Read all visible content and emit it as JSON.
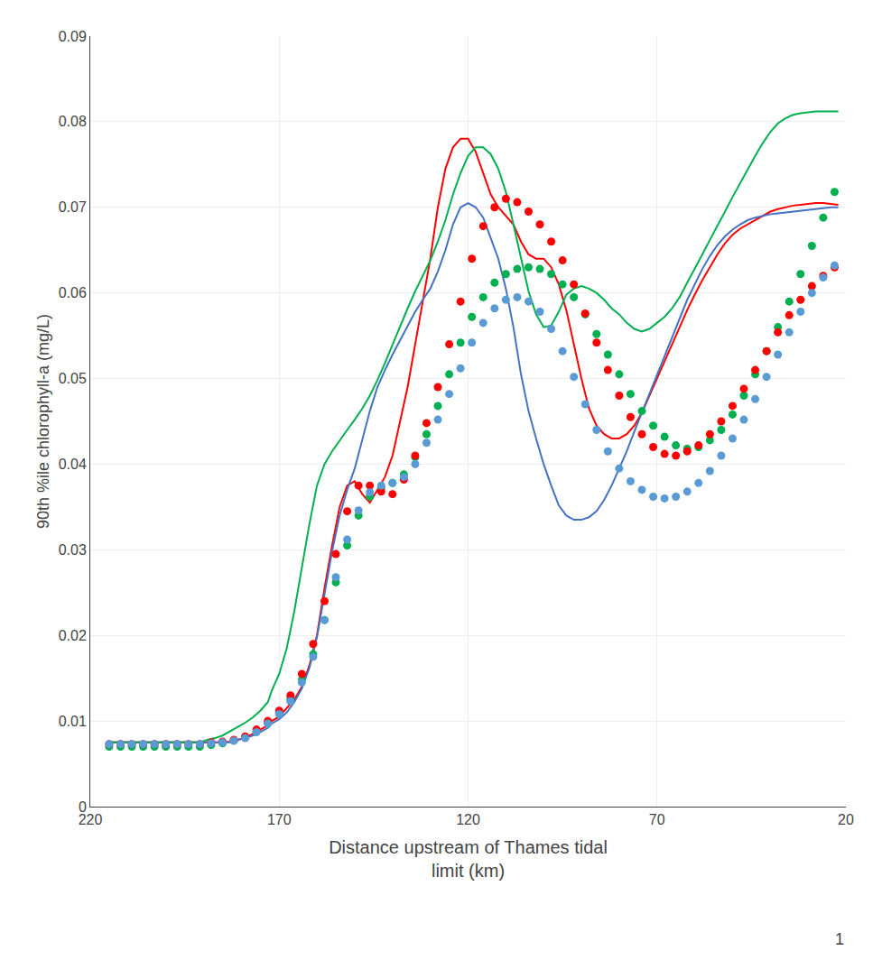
{
  "chart_data": {
    "type": "line",
    "xlabel": "Distance upstream of Thames tidal\nlimit (km)",
    "ylabel": "90th %ile chlorophyll-a (mg/L)",
    "xlim": [
      220,
      20
    ],
    "ylim": [
      0,
      0.09
    ],
    "xticks": [
      220,
      170,
      120,
      70,
      20
    ],
    "yticks": [
      0,
      0.01,
      0.02,
      0.03,
      0.04,
      0.05,
      0.06,
      0.07,
      0.08,
      0.09
    ],
    "grid": true,
    "annotations": [
      "1"
    ],
    "series": [
      {
        "type": "line",
        "color": "#FF0000",
        "x": [
          215,
          213,
          211,
          209,
          207,
          205,
          203,
          201,
          199,
          197,
          195,
          193,
          191,
          189,
          187,
          185,
          183,
          181,
          179,
          177,
          175,
          173,
          172,
          170,
          168,
          166,
          164,
          162,
          160,
          158,
          156,
          154,
          152,
          150,
          148,
          146,
          144,
          142,
          140,
          138,
          136,
          134,
          132,
          130,
          128,
          126,
          124,
          122,
          120,
          118,
          116,
          114,
          112,
          110,
          108,
          106,
          104,
          102,
          100,
          98,
          96,
          94,
          92,
          90,
          88,
          86,
          84,
          82,
          80,
          78,
          76,
          74,
          72,
          70,
          68,
          66,
          64,
          62,
          60,
          58,
          56,
          54,
          52,
          50,
          48,
          46,
          44,
          42,
          40,
          38,
          36,
          34,
          32,
          30,
          28,
          26,
          24,
          22
        ],
        "values": [
          0.0075,
          0.0075,
          0.0075,
          0.0075,
          0.0075,
          0.0075,
          0.0075,
          0.0075,
          0.0075,
          0.0075,
          0.0075,
          0.0075,
          0.0075,
          0.0075,
          0.0075,
          0.0075,
          0.0076,
          0.0078,
          0.008,
          0.0085,
          0.009,
          0.0095,
          0.01,
          0.0105,
          0.0115,
          0.0125,
          0.014,
          0.0165,
          0.02,
          0.0255,
          0.0305,
          0.035,
          0.0375,
          0.038,
          0.0365,
          0.0355,
          0.037,
          0.0385,
          0.041,
          0.045,
          0.049,
          0.054,
          0.059,
          0.064,
          0.07,
          0.0745,
          0.077,
          0.078,
          0.078,
          0.0765,
          0.074,
          0.0715,
          0.07,
          0.069,
          0.068,
          0.066,
          0.0645,
          0.064,
          0.064,
          0.063,
          0.061,
          0.058,
          0.054,
          0.05,
          0.0465,
          0.0445,
          0.0435,
          0.043,
          0.043,
          0.0435,
          0.0445,
          0.046,
          0.048,
          0.05,
          0.052,
          0.054,
          0.056,
          0.058,
          0.0598,
          0.0615,
          0.063,
          0.0645,
          0.0658,
          0.0668,
          0.0675,
          0.068,
          0.0685,
          0.069,
          0.0695,
          0.0698,
          0.07,
          0.0702,
          0.0703,
          0.0704,
          0.0705,
          0.0705,
          0.0704,
          0.0703
        ]
      },
      {
        "type": "line",
        "color": "#4472C4",
        "x": [
          215,
          213,
          211,
          209,
          207,
          205,
          203,
          201,
          199,
          197,
          195,
          193,
          191,
          189,
          187,
          185,
          183,
          181,
          179,
          177,
          175,
          173,
          172,
          170,
          168,
          166,
          164,
          162,
          160,
          158,
          156,
          154,
          152,
          150,
          148,
          146,
          144,
          142,
          140,
          138,
          136,
          134,
          132,
          130,
          128,
          126,
          124,
          122,
          120,
          118,
          116,
          114,
          112,
          110,
          108,
          106,
          104,
          102,
          100,
          98,
          96,
          94,
          92,
          90,
          88,
          86,
          84,
          82,
          80,
          78,
          76,
          74,
          72,
          70,
          68,
          66,
          64,
          62,
          60,
          58,
          56,
          54,
          52,
          50,
          48,
          46,
          44,
          42,
          40,
          38,
          36,
          34,
          32,
          30,
          28,
          26,
          24,
          22
        ],
        "values": [
          0.0075,
          0.0075,
          0.0075,
          0.0075,
          0.0075,
          0.0075,
          0.0075,
          0.0075,
          0.0075,
          0.0075,
          0.0075,
          0.0075,
          0.0075,
          0.0075,
          0.0075,
          0.0075,
          0.0075,
          0.0078,
          0.008,
          0.0083,
          0.0087,
          0.0092,
          0.0097,
          0.0102,
          0.011,
          0.0122,
          0.0138,
          0.0162,
          0.0198,
          0.0248,
          0.0298,
          0.034,
          0.037,
          0.0395,
          0.043,
          0.0462,
          0.049,
          0.051,
          0.0528,
          0.0545,
          0.0562,
          0.0578,
          0.0592,
          0.0605,
          0.0625,
          0.065,
          0.068,
          0.07,
          0.0705,
          0.07,
          0.0688,
          0.0665,
          0.064,
          0.0605,
          0.056,
          0.0505,
          0.0462,
          0.043,
          0.04,
          0.0375,
          0.0352,
          0.034,
          0.0335,
          0.0335,
          0.0338,
          0.0345,
          0.0358,
          0.0375,
          0.0395,
          0.0415,
          0.0438,
          0.046,
          0.0482,
          0.0505,
          0.0528,
          0.055,
          0.0572,
          0.0592,
          0.061,
          0.0628,
          0.0643,
          0.0656,
          0.0666,
          0.0674,
          0.068,
          0.0685,
          0.0688,
          0.069,
          0.0692,
          0.0693,
          0.0694,
          0.0695,
          0.0696,
          0.0697,
          0.0698,
          0.0699,
          0.07,
          0.07
        ]
      },
      {
        "type": "line",
        "color": "#00B050",
        "x": [
          215,
          213,
          211,
          209,
          207,
          205,
          203,
          201,
          199,
          197,
          195,
          193,
          191,
          189,
          187,
          185,
          183,
          181,
          179,
          177,
          175,
          173,
          172,
          170,
          168,
          166,
          164,
          162,
          160,
          158,
          156,
          154,
          152,
          150,
          148,
          146,
          144,
          142,
          140,
          138,
          136,
          134,
          132,
          130,
          128,
          126,
          124,
          122,
          120,
          118,
          116,
          114,
          112,
          110,
          108,
          106,
          104,
          102,
          100,
          98,
          96,
          94,
          92,
          90,
          88,
          86,
          84,
          82,
          80,
          78,
          76,
          74,
          72,
          70,
          68,
          66,
          64,
          62,
          60,
          58,
          56,
          54,
          52,
          50,
          48,
          46,
          44,
          42,
          40,
          38,
          36,
          34,
          32,
          30,
          28,
          26,
          24,
          22
        ],
        "values": [
          0.0075,
          0.0075,
          0.0075,
          0.0075,
          0.0075,
          0.0075,
          0.0075,
          0.0075,
          0.0075,
          0.0075,
          0.0075,
          0.0075,
          0.0075,
          0.0078,
          0.008,
          0.0083,
          0.0088,
          0.0093,
          0.0098,
          0.0104,
          0.0112,
          0.0122,
          0.0135,
          0.0155,
          0.0185,
          0.0228,
          0.0278,
          0.033,
          0.0375,
          0.04,
          0.0415,
          0.0428,
          0.044,
          0.0452,
          0.0465,
          0.048,
          0.0498,
          0.0518,
          0.054,
          0.0562,
          0.0582,
          0.0602,
          0.062,
          0.0638,
          0.066,
          0.0685,
          0.0715,
          0.074,
          0.076,
          0.077,
          0.077,
          0.0762,
          0.0745,
          0.0718,
          0.068,
          0.064,
          0.0602,
          0.0575,
          0.056,
          0.0562,
          0.0578,
          0.0598,
          0.0605,
          0.0608,
          0.0605,
          0.06,
          0.0592,
          0.0582,
          0.0575,
          0.0565,
          0.0558,
          0.0555,
          0.0558,
          0.0565,
          0.0572,
          0.0582,
          0.0595,
          0.0612,
          0.0628,
          0.0645,
          0.0662,
          0.0678,
          0.0695,
          0.0712,
          0.0728,
          0.0745,
          0.076,
          0.0775,
          0.0788,
          0.0798,
          0.0804,
          0.0808,
          0.081,
          0.0811,
          0.0812,
          0.0812,
          0.0812,
          0.0812
        ]
      },
      {
        "type": "scatter",
        "marker": "circle",
        "color": "#00B050",
        "x": [
          215,
          212,
          209,
          206,
          203,
          200,
          197,
          194,
          191,
          188,
          185,
          182,
          179,
          176,
          173,
          170,
          167,
          164,
          161,
          158,
          155,
          152,
          149,
          146,
          143,
          140,
          137,
          134,
          131,
          128,
          125,
          122,
          119,
          116,
          113,
          110,
          107,
          104,
          101,
          98,
          95,
          92,
          89,
          86,
          83,
          80,
          77,
          74,
          71,
          68,
          65,
          62,
          59,
          56,
          53,
          50,
          47,
          44,
          41,
          38,
          35,
          32,
          29,
          26,
          23
        ],
        "values": [
          0.007,
          0.007,
          0.007,
          0.007,
          0.007,
          0.007,
          0.007,
          0.007,
          0.007,
          0.0072,
          0.0074,
          0.0077,
          0.0081,
          0.0088,
          0.0098,
          0.011,
          0.0126,
          0.0148,
          0.0178,
          0.0218,
          0.0262,
          0.0305,
          0.034,
          0.0362,
          0.0372,
          0.0378,
          0.0388,
          0.0408,
          0.0435,
          0.0468,
          0.0505,
          0.0542,
          0.0572,
          0.0595,
          0.0612,
          0.0622,
          0.0628,
          0.063,
          0.0628,
          0.0622,
          0.061,
          0.0595,
          0.0575,
          0.0552,
          0.0528,
          0.0505,
          0.0482,
          0.0462,
          0.0445,
          0.0432,
          0.0422,
          0.0418,
          0.042,
          0.0428,
          0.044,
          0.0458,
          0.048,
          0.0505,
          0.0532,
          0.056,
          0.059,
          0.0622,
          0.0655,
          0.0688,
          0.0718
        ]
      },
      {
        "type": "scatter",
        "marker": "circle",
        "color": "#FF0000",
        "x": [
          215,
          212,
          209,
          206,
          203,
          200,
          197,
          194,
          191,
          188,
          185,
          182,
          179,
          176,
          173,
          170,
          167,
          164,
          161,
          158,
          155,
          152,
          149,
          146,
          143,
          140,
          137,
          134,
          131,
          128,
          125,
          122,
          119,
          116,
          113,
          110,
          107,
          104,
          101,
          98,
          95,
          92,
          89,
          86,
          83,
          80,
          77,
          74,
          71,
          68,
          65,
          62,
          59,
          56,
          53,
          50,
          47,
          44,
          41,
          38,
          35,
          32,
          29,
          26,
          23
        ],
        "values": [
          0.0073,
          0.0073,
          0.0073,
          0.0073,
          0.0073,
          0.0073,
          0.0073,
          0.0073,
          0.0073,
          0.0075,
          0.0076,
          0.0078,
          0.0082,
          0.009,
          0.01,
          0.0112,
          0.013,
          0.0155,
          0.019,
          0.024,
          0.0295,
          0.0345,
          0.0375,
          0.0375,
          0.0368,
          0.0365,
          0.0382,
          0.041,
          0.0448,
          0.049,
          0.054,
          0.059,
          0.064,
          0.0678,
          0.07,
          0.071,
          0.0706,
          0.0695,
          0.068,
          0.066,
          0.0638,
          0.061,
          0.0576,
          0.0542,
          0.051,
          0.048,
          0.0455,
          0.0435,
          0.042,
          0.0412,
          0.041,
          0.0415,
          0.0422,
          0.0435,
          0.045,
          0.0468,
          0.0488,
          0.051,
          0.0532,
          0.0554,
          0.0574,
          0.0592,
          0.0608,
          0.062,
          0.063
        ]
      },
      {
        "type": "scatter",
        "marker": "circle",
        "color": "#5B9BD5",
        "x": [
          215,
          212,
          209,
          206,
          203,
          200,
          197,
          194,
          191,
          188,
          185,
          182,
          179,
          176,
          173,
          170,
          167,
          164,
          161,
          158,
          155,
          152,
          149,
          146,
          143,
          140,
          137,
          134,
          131,
          128,
          125,
          122,
          119,
          116,
          113,
          110,
          107,
          104,
          101,
          98,
          95,
          92,
          89,
          86,
          83,
          80,
          77,
          74,
          71,
          68,
          65,
          62,
          59,
          56,
          53,
          50,
          47,
          44,
          41,
          38,
          35,
          32,
          29,
          26,
          23
        ],
        "values": [
          0.0073,
          0.0073,
          0.0073,
          0.0073,
          0.0073,
          0.0073,
          0.0073,
          0.0073,
          0.0073,
          0.0074,
          0.0075,
          0.0077,
          0.008,
          0.0087,
          0.0097,
          0.0108,
          0.0123,
          0.0145,
          0.0175,
          0.0218,
          0.0268,
          0.0312,
          0.0346,
          0.0367,
          0.0375,
          0.0378,
          0.0385,
          0.04,
          0.0425,
          0.0452,
          0.0482,
          0.0512,
          0.0542,
          0.0565,
          0.0582,
          0.0592,
          0.0595,
          0.059,
          0.0578,
          0.0558,
          0.0532,
          0.0502,
          0.047,
          0.044,
          0.0415,
          0.0395,
          0.038,
          0.037,
          0.0362,
          0.036,
          0.0362,
          0.0368,
          0.0378,
          0.0392,
          0.041,
          0.043,
          0.0452,
          0.0476,
          0.0502,
          0.0528,
          0.0554,
          0.0578,
          0.06,
          0.0618,
          0.0632
        ]
      }
    ]
  }
}
